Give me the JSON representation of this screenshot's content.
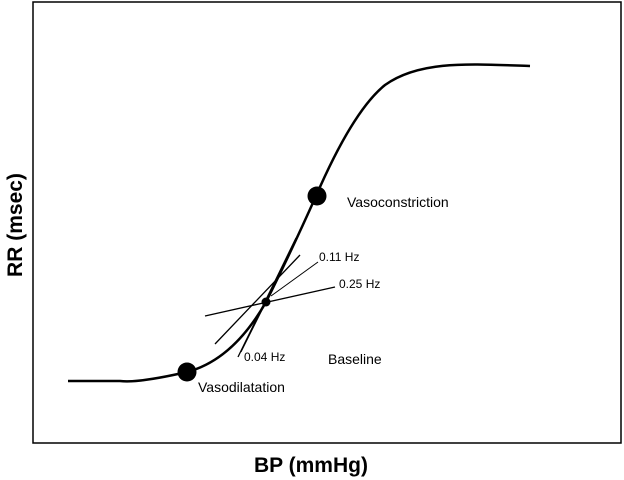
{
  "axes": {
    "x_label": "BP (mmHg)",
    "y_label": "RR (msec)"
  },
  "points": {
    "vasoconstriction": "Vasoconstriction",
    "vasodilatation": "Vasodilatation",
    "baseline": "Baseline"
  },
  "slope_lines": {
    "f011": "0.11 Hz",
    "f025": "0.25 Hz",
    "f004": "0.04 Hz"
  },
  "colors": {
    "ink": "#000000",
    "background": "#ffffff"
  }
}
